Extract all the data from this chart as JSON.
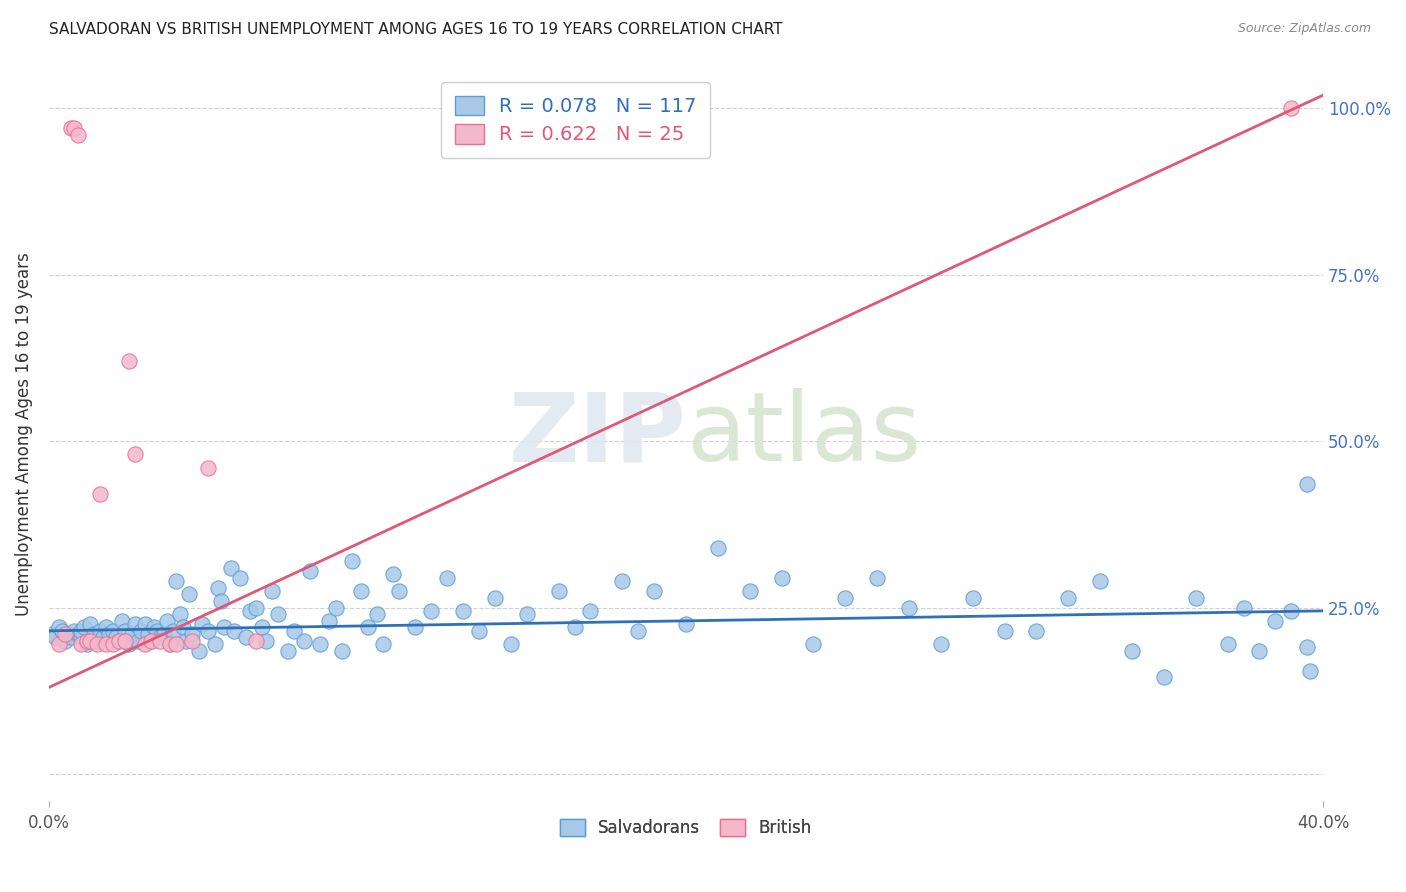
{
  "title": "SALVADORAN VS BRITISH UNEMPLOYMENT AMONG AGES 16 TO 19 YEARS CORRELATION CHART",
  "source": "Source: ZipAtlas.com",
  "ylabel": "Unemployment Among Ages 16 to 19 years",
  "ytick_labels": [
    "",
    "25.0%",
    "50.0%",
    "75.0%",
    "100.0%"
  ],
  "ytick_positions": [
    0.0,
    0.25,
    0.5,
    0.75,
    1.0
  ],
  "xtick_labels": [
    "0.0%",
    "40.0%"
  ],
  "xtick_positions": [
    0.0,
    0.4
  ],
  "xmin": 0.0,
  "xmax": 0.4,
  "ymin": -0.04,
  "ymax": 1.06,
  "salvadoran_color": "#a8c8e8",
  "british_color": "#f4b8cc",
  "salvadoran_edge_color": "#5a9fd4",
  "british_edge_color": "#e87090",
  "salvadoran_line_color": "#3070b8",
  "british_line_color": "#e05878",
  "legend_label_salvadoran": "R = 0.078   N = 117",
  "legend_label_british": "R = 0.622   N = 25",
  "legend_label_salvadoran_bottom": "Salvadorans",
  "legend_label_british_bottom": "British",
  "watermark_zip": "ZIP",
  "watermark_atlas": "atlas",
  "r_salvadoran": 0.078,
  "n_salvadoran": 117,
  "r_british": 0.622,
  "n_british": 25,
  "sal_line_x0": 0.0,
  "sal_line_y0": 0.215,
  "sal_line_x1": 0.4,
  "sal_line_y1": 0.245,
  "brit_line_x0": 0.0,
  "brit_line_y0": 0.13,
  "brit_line_x1": 0.4,
  "brit_line_y1": 1.02,
  "salvadoran_x": [
    0.001,
    0.002,
    0.003,
    0.004,
    0.005,
    0.006,
    0.007,
    0.008,
    0.009,
    0.01,
    0.01,
    0.011,
    0.012,
    0.013,
    0.014,
    0.015,
    0.016,
    0.017,
    0.018,
    0.019,
    0.02,
    0.021,
    0.022,
    0.023,
    0.024,
    0.025,
    0.026,
    0.027,
    0.028,
    0.029,
    0.03,
    0.031,
    0.032,
    0.033,
    0.034,
    0.035,
    0.036,
    0.037,
    0.038,
    0.039,
    0.04,
    0.041,
    0.042,
    0.043,
    0.044,
    0.045,
    0.047,
    0.048,
    0.05,
    0.052,
    0.053,
    0.054,
    0.055,
    0.057,
    0.058,
    0.06,
    0.062,
    0.063,
    0.065,
    0.067,
    0.068,
    0.07,
    0.072,
    0.075,
    0.077,
    0.08,
    0.082,
    0.085,
    0.088,
    0.09,
    0.092,
    0.095,
    0.098,
    0.1,
    0.103,
    0.105,
    0.108,
    0.11,
    0.115,
    0.12,
    0.125,
    0.13,
    0.135,
    0.14,
    0.145,
    0.15,
    0.16,
    0.165,
    0.17,
    0.18,
    0.185,
    0.19,
    0.2,
    0.21,
    0.22,
    0.23,
    0.24,
    0.25,
    0.26,
    0.27,
    0.28,
    0.29,
    0.3,
    0.31,
    0.32,
    0.33,
    0.34,
    0.35,
    0.36,
    0.37,
    0.375,
    0.38,
    0.385,
    0.39,
    0.395,
    0.395,
    0.396
  ],
  "salvadoran_y": [
    0.21,
    0.205,
    0.22,
    0.215,
    0.2,
    0.21,
    0.205,
    0.215,
    0.21,
    0.205,
    0.215,
    0.22,
    0.195,
    0.225,
    0.21,
    0.2,
    0.215,
    0.205,
    0.22,
    0.21,
    0.215,
    0.205,
    0.2,
    0.23,
    0.215,
    0.195,
    0.21,
    0.225,
    0.2,
    0.215,
    0.225,
    0.21,
    0.2,
    0.22,
    0.215,
    0.205,
    0.21,
    0.23,
    0.195,
    0.215,
    0.29,
    0.24,
    0.22,
    0.2,
    0.27,
    0.21,
    0.185,
    0.225,
    0.215,
    0.195,
    0.28,
    0.26,
    0.22,
    0.31,
    0.215,
    0.295,
    0.205,
    0.245,
    0.25,
    0.22,
    0.2,
    0.275,
    0.24,
    0.185,
    0.215,
    0.2,
    0.305,
    0.195,
    0.23,
    0.25,
    0.185,
    0.32,
    0.275,
    0.22,
    0.24,
    0.195,
    0.3,
    0.275,
    0.22,
    0.245,
    0.295,
    0.245,
    0.215,
    0.265,
    0.195,
    0.24,
    0.275,
    0.22,
    0.245,
    0.29,
    0.215,
    0.275,
    0.225,
    0.34,
    0.275,
    0.295,
    0.195,
    0.265,
    0.295,
    0.25,
    0.195,
    0.265,
    0.215,
    0.215,
    0.265,
    0.29,
    0.185,
    0.145,
    0.265,
    0.195,
    0.25,
    0.185,
    0.23,
    0.245,
    0.19,
    0.435,
    0.155
  ],
  "british_x": [
    0.003,
    0.005,
    0.007,
    0.008,
    0.009,
    0.01,
    0.012,
    0.013,
    0.015,
    0.016,
    0.018,
    0.02,
    0.022,
    0.024,
    0.025,
    0.027,
    0.03,
    0.032,
    0.035,
    0.038,
    0.04,
    0.045,
    0.05,
    0.065,
    0.39
  ],
  "british_y": [
    0.195,
    0.21,
    0.97,
    0.97,
    0.96,
    0.195,
    0.2,
    0.2,
    0.195,
    0.42,
    0.195,
    0.195,
    0.2,
    0.2,
    0.62,
    0.48,
    0.195,
    0.2,
    0.2,
    0.195,
    0.195,
    0.2,
    0.46,
    0.2,
    1.0
  ]
}
